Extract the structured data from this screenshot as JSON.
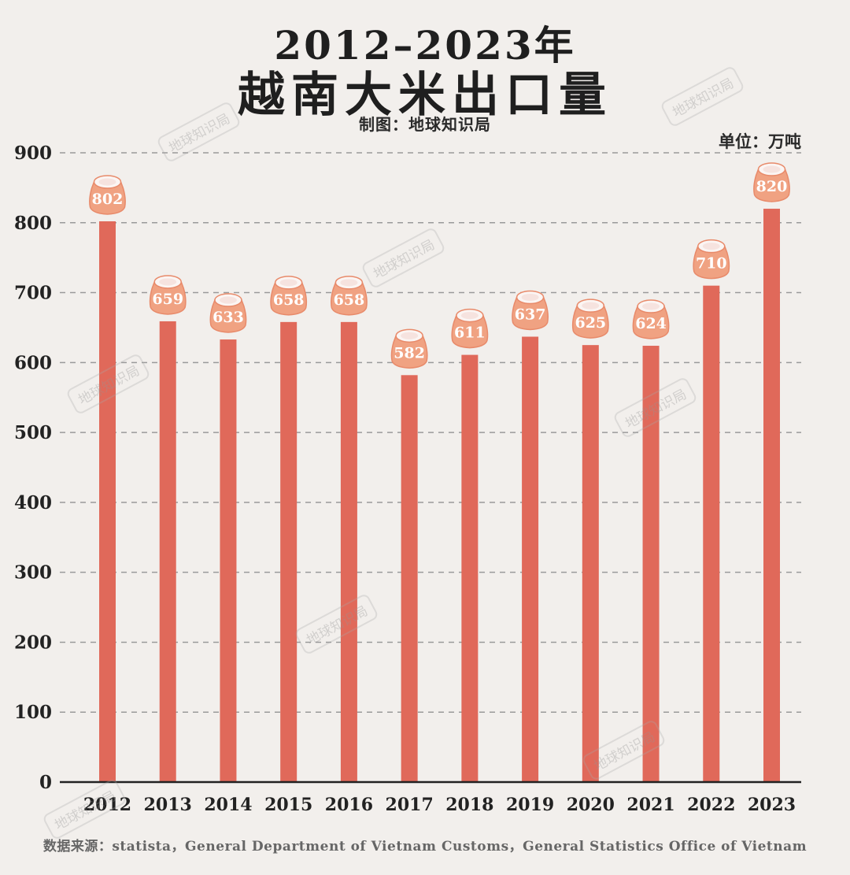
{
  "header": {
    "title_line1": "2012–2023年",
    "title_line2": "越南大米出口量",
    "credit": "制图：地球知识局"
  },
  "unit_label": "单位：万吨",
  "source": "数据来源：statista，General Department of Vietnam Customs，General Statistics Office of Vietnam",
  "watermark": "地球知识局",
  "colors": {
    "background": "#f2efec",
    "bar": "#e0695a",
    "bag": "#f0a282",
    "bag_outline": "#e88a6a",
    "rice": "#fbf5f3",
    "grid": "#9a9a9a"
  },
  "chart_data": {
    "type": "bar",
    "categories": [
      "2012",
      "2013",
      "2014",
      "2015",
      "2016",
      "2017",
      "2018",
      "2019",
      "2020",
      "2021",
      "2022",
      "2023"
    ],
    "values": [
      802,
      659,
      633,
      658,
      658,
      582,
      611,
      637,
      625,
      624,
      710,
      820
    ],
    "data_labels": [
      "802",
      "659",
      "633",
      "658",
      "658",
      "582",
      "611",
      "637",
      "625",
      "624",
      "710",
      "820"
    ],
    "ylim": [
      0,
      900
    ],
    "yticks": [
      0,
      100,
      200,
      300,
      400,
      500,
      600,
      700,
      800,
      900
    ],
    "ytick_labels": [
      "0",
      "100",
      "200",
      "300",
      "400",
      "500",
      "600",
      "700",
      "800",
      "900"
    ],
    "grid": true,
    "grid_style": "dashed",
    "legend": "none",
    "title": "越南大米出口量"
  }
}
